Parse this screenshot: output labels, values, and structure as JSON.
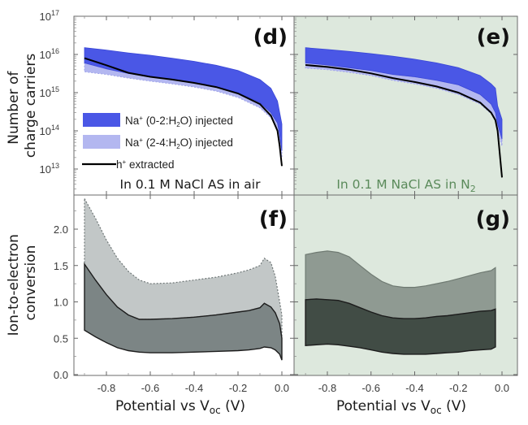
{
  "colors": {
    "na_0_2_fill": "#4a57e6",
    "na_2_4_fill": "#b3b7f0",
    "h_line": "#000000",
    "n2_background": "#dde8dd",
    "n2_annotation": "#5a8a5a",
    "air_annotation": "#1a1a1a",
    "conv_light_air": "#c2c7c7",
    "conv_dark_air": "#7c8585",
    "conv_light_n2": "#8f9a92",
    "conv_dark_n2": "#414c45"
  },
  "chart_data": [
    {
      "id": "d",
      "type": "area",
      "panel_letter": "(d)",
      "annotation": "In 0.1 M NaCl AS in air",
      "ylabel_lines": [
        "Number of",
        "charge carriers"
      ],
      "xlabel": "",
      "yscale": "log",
      "ylim": [
        1000000000000.0,
        1e+17
      ],
      "xlim": [
        -0.93,
        0.03
      ],
      "ytick_exponents": [
        13,
        14,
        15,
        16,
        17
      ],
      "ytick_base": "10",
      "xticks": [],
      "legend": {
        "position": "lower-left",
        "entries": [
          {
            "label_pre": "Na",
            "label_sup": "+",
            "label_mid": " (0-2:H",
            "label_sub": "2",
            "label_post": "O) injected",
            "kind": "band-dark"
          },
          {
            "label_pre": "Na",
            "label_sup": "+",
            "label_mid": " (2-4:H",
            "label_sub": "2",
            "label_post": "O) injected",
            "kind": "band-light"
          },
          {
            "label_pre": "h",
            "label_sup": "+",
            "label_mid": " extracted",
            "label_sub": "",
            "label_post": "",
            "kind": "line"
          }
        ]
      },
      "x": [
        -0.9,
        -0.8,
        -0.7,
        -0.6,
        -0.5,
        -0.4,
        -0.3,
        -0.2,
        -0.1,
        -0.05,
        -0.02,
        -0.01,
        0.0
      ],
      "series": [
        {
          "name": "Na+ (0-2:H2O) injected",
          "kind": "band",
          "upper": [
            1.5e+16,
            1.3e+16,
            1.1e+16,
            9500000000000000.0,
            8000000000000000.0,
            6600000000000000.0,
            5200000000000000.0,
            3800000000000000.0,
            2200000000000000.0,
            1300000000000000.0,
            600000000000000.0,
            300000000000000.0,
            150000000000000.0
          ],
          "lower": [
            6000000000000000.0,
            4200000000000000.0,
            3200000000000000.0,
            2600000000000000.0,
            2200000000000000.0,
            1800000000000000.0,
            1400000000000000.0,
            1000000000000000.0,
            550000000000000.0,
            300000000000000.0,
            160000000000000.0,
            80000000000000.0,
            30000000000000.0
          ]
        },
        {
          "name": "Na+ (2-4:H2O) injected",
          "kind": "band",
          "upper": [
            6000000000000000.0,
            4200000000000000.0,
            3200000000000000.0,
            2600000000000000.0,
            2200000000000000.0,
            1800000000000000.0,
            1400000000000000.0,
            1000000000000000.0,
            550000000000000.0,
            300000000000000.0,
            160000000000000.0,
            80000000000000.0,
            30000000000000.0
          ],
          "lower": [
            3500000000000000.0,
            3000000000000000.0,
            2400000000000000.0,
            2000000000000000.0,
            1700000000000000.0,
            1400000000000000.0,
            1100000000000000.0,
            750000000000000.0,
            400000000000000.0,
            220000000000000.0,
            110000000000000.0,
            50000000000000.0,
            20000000000000.0
          ]
        },
        {
          "name": "h+ extracted",
          "kind": "line",
          "values": [
            8000000000000000.0,
            5200000000000000.0,
            3300000000000000.0,
            2600000000000000.0,
            2200000000000000.0,
            1800000000000000.0,
            1400000000000000.0,
            950000000000000.0,
            500000000000000.0,
            250000000000000.0,
            100000000000000.0,
            40000000000000.0,
            12000000000000.0
          ]
        }
      ]
    },
    {
      "id": "e",
      "type": "area",
      "panel_letter": "(e)",
      "annotation_pre": "In 0.1 M NaCl AS in N",
      "annotation_sub": "2",
      "yscale": "log",
      "ylim": [
        1000000000000.0,
        1e+17
      ],
      "xlim": [
        -0.93,
        0.03
      ],
      "xticks": [],
      "x": [
        -0.9,
        -0.8,
        -0.7,
        -0.6,
        -0.5,
        -0.4,
        -0.3,
        -0.2,
        -0.1,
        -0.05,
        -0.03,
        -0.02,
        0.0
      ],
      "series": [
        {
          "name": "Na+ (0-2:H2O) injected",
          "kind": "band",
          "upper": [
            1.5e+16,
            1.35e+16,
            1.2e+16,
            1.05e+16,
            9000000000000000.0,
            7500000000000000.0,
            6000000000000000.0,
            4500000000000000.0,
            2800000000000000.0,
            1700000000000000.0,
            1300000000000000.0,
            450000000000000.0,
            200000000000000.0
          ],
          "lower": [
            6000000000000000.0,
            5300000000000000.0,
            4500000000000000.0,
            3800000000000000.0,
            3000000000000000.0,
            2600000000000000.0,
            2100000000000000.0,
            1600000000000000.0,
            900000000000000.0,
            500000000000000.0,
            300000000000000.0,
            150000000000000.0,
            60000000000000.0
          ]
        },
        {
          "name": "Na+ (2-4:H2O) injected",
          "kind": "band",
          "upper": [
            6000000000000000.0,
            5300000000000000.0,
            4500000000000000.0,
            3800000000000000.0,
            3000000000000000.0,
            2600000000000000.0,
            2100000000000000.0,
            1600000000000000.0,
            900000000000000.0,
            500000000000000.0,
            300000000000000.0,
            150000000000000.0,
            60000000000000.0
          ],
          "lower": [
            4400000000000000.0,
            4000000000000000.0,
            3400000000000000.0,
            2800000000000000.0,
            2100000000000000.0,
            1700000000000000.0,
            1300000000000000.0,
            900000000000000.0,
            500000000000000.0,
            280000000000000.0,
            180000000000000.0,
            100000000000000.0,
            40000000000000.0
          ]
        },
        {
          "name": "h+ extracted",
          "kind": "line",
          "values": [
            5300000000000000.0,
            4700000000000000.0,
            4000000000000000.0,
            3200000000000000.0,
            2400000000000000.0,
            1900000000000000.0,
            1450000000000000.0,
            1000000000000000.0,
            550000000000000.0,
            300000000000000.0,
            190000000000000.0,
            100000000000000.0,
            6000000000000.0
          ]
        }
      ]
    },
    {
      "id": "f",
      "type": "area",
      "panel_letter": "(f)",
      "ylabel_lines": [
        "Ion-to-electron",
        "conversion"
      ],
      "xlabel_pre": "Potential vs V",
      "xlabel_sub": "oc",
      "xlabel_post": " (V)",
      "yscale": "linear",
      "ylim": [
        0.0,
        2.5
      ],
      "xlim": [
        -0.93,
        0.03
      ],
      "yticks": [
        0.0,
        0.5,
        1.0,
        1.5,
        2.0
      ],
      "ytick_labels": [
        "0.0",
        "0.5",
        "1.0",
        "1.5",
        "2.0"
      ],
      "xticks": [
        -0.8,
        -0.6,
        -0.4,
        -0.2,
        0.0
      ],
      "xtick_labels": [
        "-0.8",
        "-0.6",
        "-0.4",
        "-0.2",
        "0.0"
      ],
      "x": [
        -0.9,
        -0.85,
        -0.8,
        -0.75,
        -0.7,
        -0.65,
        -0.6,
        -0.5,
        -0.4,
        -0.3,
        -0.2,
        -0.15,
        -0.1,
        -0.08,
        -0.05,
        -0.03,
        -0.01,
        0.0
      ],
      "series": [
        {
          "name": "upper band (light)",
          "kind": "band",
          "upper": [
            2.42,
            2.15,
            1.85,
            1.6,
            1.42,
            1.3,
            1.25,
            1.26,
            1.3,
            1.34,
            1.4,
            1.44,
            1.5,
            1.6,
            1.54,
            1.35,
            1.0,
            0.82
          ],
          "lower": [
            1.52,
            1.3,
            1.1,
            0.93,
            0.82,
            0.76,
            0.76,
            0.77,
            0.79,
            0.82,
            0.86,
            0.88,
            0.92,
            0.98,
            0.93,
            0.85,
            0.7,
            0.5
          ]
        },
        {
          "name": "lower band (dark)",
          "kind": "band",
          "upper": [
            1.52,
            1.3,
            1.1,
            0.93,
            0.82,
            0.76,
            0.76,
            0.77,
            0.79,
            0.82,
            0.86,
            0.88,
            0.92,
            0.98,
            0.93,
            0.85,
            0.7,
            0.5
          ],
          "lower": [
            0.61,
            0.52,
            0.44,
            0.37,
            0.33,
            0.31,
            0.3,
            0.3,
            0.31,
            0.32,
            0.33,
            0.34,
            0.36,
            0.38,
            0.37,
            0.34,
            0.28,
            0.2
          ]
        }
      ]
    },
    {
      "id": "g",
      "type": "area",
      "panel_letter": "(g)",
      "xlabel_pre": "Potential vs V",
      "xlabel_sub": "oc",
      "xlabel_post": " (V)",
      "yscale": "linear",
      "ylim": [
        0.0,
        2.5
      ],
      "xlim": [
        -0.93,
        0.03
      ],
      "yticks": [
        0.0,
        0.5,
        1.0,
        1.5,
        2.0
      ],
      "xticks": [
        -0.8,
        -0.6,
        -0.4,
        -0.2,
        0.0
      ],
      "xtick_labels": [
        "-0.8",
        "-0.6",
        "-0.4",
        "-0.2",
        "0.0"
      ],
      "x": [
        -0.9,
        -0.85,
        -0.8,
        -0.75,
        -0.7,
        -0.65,
        -0.6,
        -0.55,
        -0.5,
        -0.45,
        -0.4,
        -0.35,
        -0.3,
        -0.25,
        -0.2,
        -0.15,
        -0.1,
        -0.05,
        -0.03
      ],
      "series": [
        {
          "name": "upper band (light)",
          "kind": "band",
          "upper": [
            1.65,
            1.68,
            1.7,
            1.68,
            1.62,
            1.5,
            1.38,
            1.28,
            1.22,
            1.2,
            1.2,
            1.22,
            1.25,
            1.28,
            1.32,
            1.36,
            1.4,
            1.43,
            1.47
          ],
          "lower": [
            1.03,
            1.04,
            1.03,
            1.02,
            0.98,
            0.92,
            0.86,
            0.81,
            0.78,
            0.77,
            0.77,
            0.78,
            0.8,
            0.81,
            0.83,
            0.85,
            0.87,
            0.88,
            0.9
          ]
        },
        {
          "name": "lower band (dark)",
          "kind": "band",
          "upper": [
            1.03,
            1.04,
            1.03,
            1.02,
            0.98,
            0.92,
            0.86,
            0.81,
            0.78,
            0.77,
            0.77,
            0.78,
            0.8,
            0.81,
            0.83,
            0.85,
            0.87,
            0.88,
            0.9
          ],
          "lower": [
            0.4,
            0.41,
            0.42,
            0.41,
            0.39,
            0.37,
            0.34,
            0.31,
            0.29,
            0.28,
            0.28,
            0.28,
            0.29,
            0.3,
            0.31,
            0.33,
            0.34,
            0.35,
            0.38
          ]
        }
      ]
    }
  ]
}
